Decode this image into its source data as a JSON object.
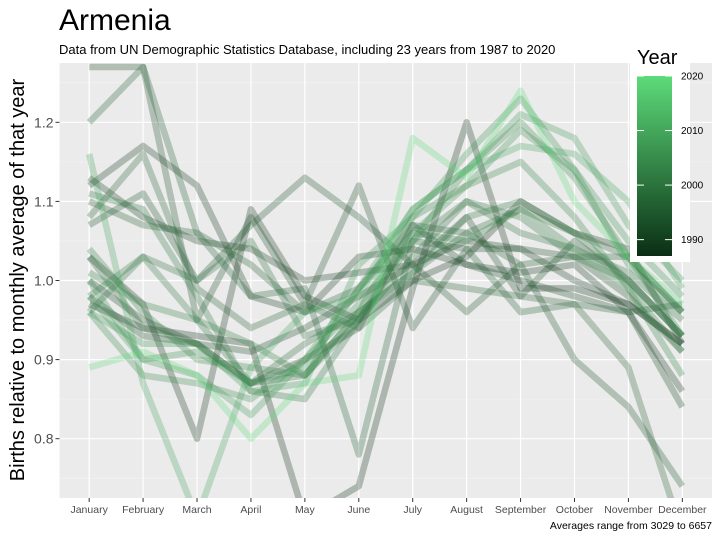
{
  "chart_data": {
    "type": "line",
    "title": "Armenia",
    "subtitle": "Data from UN Demographic Statistics Database, including 23 years from 1987 to 2020",
    "ylabel": "Births relative to monthly average of that year",
    "xlabel": "",
    "caption": "Averages range from 3029 to 6657",
    "categories": [
      "January",
      "February",
      "March",
      "April",
      "May",
      "June",
      "July",
      "August",
      "September",
      "October",
      "November",
      "December"
    ],
    "ylim": [
      0.725,
      1.275
    ],
    "yticks": [
      0.8,
      0.9,
      1.0,
      1.1,
      1.2
    ],
    "ytick_labels": [
      "0.8",
      "0.9",
      "1.0",
      "1.1",
      "1.2"
    ],
    "grid": true,
    "legend": {
      "title": "Year",
      "position": "right",
      "min": 1987,
      "max": 2020,
      "ticks": [
        1990,
        2000,
        2010,
        2020
      ],
      "tick_labels": [
        "1990",
        "2000",
        "2010",
        "2020"
      ],
      "color_low": "#0a2e14",
      "color_high": "#5ddb7a"
    },
    "series": [
      {
        "year": 1987,
        "values": [
          0.97,
          0.94,
          0.93,
          0.92,
          0.7,
          0.74,
          0.99,
          1.2,
          0.99,
          0.99,
          0.97,
          0.92
        ]
      },
      {
        "year": 1988,
        "values": [
          1.03,
          0.97,
          0.8,
          1.09,
          0.98,
          0.95,
          1.0,
          1.03,
          1.1,
          1.06,
          1.04,
          0.92
        ]
      },
      {
        "year": 1989,
        "values": [
          1.12,
          1.17,
          1.12,
          0.98,
          0.96,
          1.03,
          1.04,
          1.02,
          1.01,
          1.02,
          0.96,
          0.86
        ]
      },
      {
        "year": 1990,
        "values": [
          1.13,
          1.08,
          1.05,
          1.04,
          1.0,
          1.01,
          1.02,
          1.05,
          1.04,
          1.0,
          0.97,
          0.92
        ]
      },
      {
        "year": 1991,
        "values": [
          1.0,
          0.95,
          0.92,
          0.87,
          0.9,
          0.94,
          1.07,
          1.02,
          1.0,
          0.98,
          0.96,
          0.84
        ]
      },
      {
        "year": 1992,
        "values": [
          0.98,
          0.93,
          0.92,
          0.91,
          0.94,
          0.98,
          1.02,
          1.08,
          0.98,
          1.05,
          1.0,
          0.93
        ]
      },
      {
        "year": 1993,
        "values": [
          1.27,
          1.27,
          0.95,
          1.08,
          0.97,
          1.12,
          0.94,
          1.04,
          1.04,
          1.03,
          0.98,
          0.91
        ]
      },
      {
        "year": 1994,
        "values": [
          1.07,
          1.11,
          1.0,
          1.07,
          1.13,
          1.08,
          1.02,
          0.96,
          1.02,
          0.9,
          0.84,
          0.74
        ]
      },
      {
        "year": 1995,
        "values": [
          1.2,
          1.27,
          1.06,
          0.98,
          0.99,
          0.78,
          1.05,
          1.04,
          0.96,
          0.97,
          0.96,
          0.97
        ]
      },
      {
        "year": 1996,
        "values": [
          1.1,
          1.07,
          1.06,
          1.02,
          0.96,
          0.99,
          1.07,
          1.06,
          1.02,
          1.03,
          1.03,
          0.96
        ]
      },
      {
        "year": 1997,
        "values": [
          1.08,
          1.16,
          0.99,
          0.94,
          0.97,
          0.94,
          1.0,
          0.99,
          0.98,
          0.97,
          0.89,
          0.68
        ]
      },
      {
        "year": 1998,
        "values": [
          1.03,
          0.94,
          0.92,
          0.87,
          0.92,
          0.96,
          1.01,
          1.06,
          1.09,
          1.06,
          1.03,
          0.96
        ]
      },
      {
        "year": 1999,
        "values": [
          0.96,
          1.03,
          1.0,
          1.05,
          0.93,
          0.95,
          1.03,
          1.1,
          1.06,
          1.04,
          1.01,
          0.95
        ]
      },
      {
        "year": 2000,
        "values": [
          1.11,
          1.09,
          0.98,
          0.86,
          0.85,
          0.95,
          1.05,
          1.1,
          1.08,
          1.03,
          1.0,
          0.93
        ]
      },
      {
        "year": 2001,
        "values": [
          0.98,
          1.03,
          0.95,
          0.87,
          0.88,
          0.96,
          1.01,
          1.08,
          1.1,
          1.06,
          1.0,
          0.93
        ]
      },
      {
        "year": 2002,
        "values": [
          1.01,
          0.97,
          0.95,
          0.92,
          0.88,
          0.95,
          1.06,
          1.05,
          1.09,
          1.04,
          0.99,
          0.91
        ]
      },
      {
        "year": 2003,
        "values": [
          1.04,
          0.96,
          0.9,
          0.89,
          0.88,
          0.96,
          1.08,
          1.12,
          1.15,
          1.08,
          0.99,
          0.88
        ]
      },
      {
        "year": 2004,
        "values": [
          0.96,
          0.88,
          0.87,
          0.85,
          0.9,
          0.97,
          1.05,
          1.14,
          1.2,
          1.13,
          1.03,
          0.93
        ]
      },
      {
        "year": 2005,
        "values": [
          1.0,
          0.9,
          0.91,
          0.87,
          0.89,
          0.99,
          1.06,
          1.12,
          1.19,
          1.14,
          1.02,
          0.96
        ]
      },
      {
        "year": 2006,
        "values": [
          0.96,
          0.92,
          0.92,
          0.86,
          0.87,
          1.02,
          1.08,
          1.16,
          1.23,
          1.14,
          1.05,
          0.98
        ]
      },
      {
        "year": 2007,
        "values": [
          0.98,
          0.9,
          0.88,
          0.83,
          0.9,
          0.99,
          1.09,
          1.14,
          1.21,
          1.18,
          1.07,
          1.0
        ]
      },
      {
        "year": 2009,
        "values": [
          1.16,
          0.87,
          0.7,
          0.89,
          0.96,
          0.98,
          1.09,
          1.14,
          1.17,
          1.16,
          1.1,
          0.99
        ]
      },
      {
        "year": 2020,
        "values": [
          0.89,
          0.91,
          0.88,
          0.8,
          0.87,
          0.88,
          1.18,
          1.13,
          1.24,
          1.1,
          1.03,
          0.97
        ]
      }
    ]
  }
}
